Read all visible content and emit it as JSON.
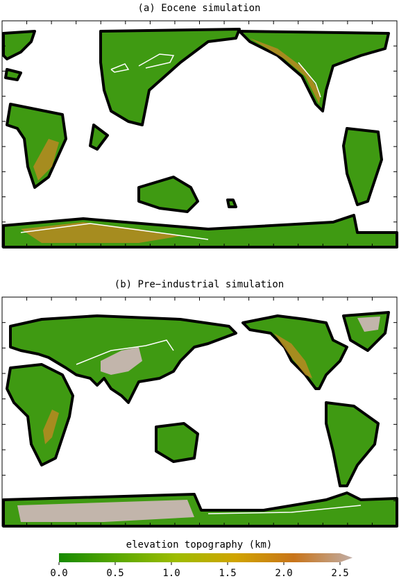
{
  "panels": [
    {
      "title": "(a) Eocene simulation"
    },
    {
      "title": "(b) Pre−industrial simulation"
    }
  ],
  "colorbar": {
    "label": "elevation topography (km)",
    "range": [
      0,
      2.5
    ],
    "ticks": [
      {
        "value": 0,
        "label": "0.0"
      },
      {
        "value": 0.5,
        "label": "0.5"
      },
      {
        "value": 1,
        "label": "1.0"
      },
      {
        "value": 1.5,
        "label": "1.5"
      },
      {
        "value": 2,
        "label": "2.0"
      },
      {
        "value": 2.5,
        "label": "2.5"
      }
    ],
    "colors": [
      "#168a00",
      "#5aa800",
      "#9ebc00",
      "#d0a400",
      "#c8741a",
      "#c0aca4"
    ]
  }
}
